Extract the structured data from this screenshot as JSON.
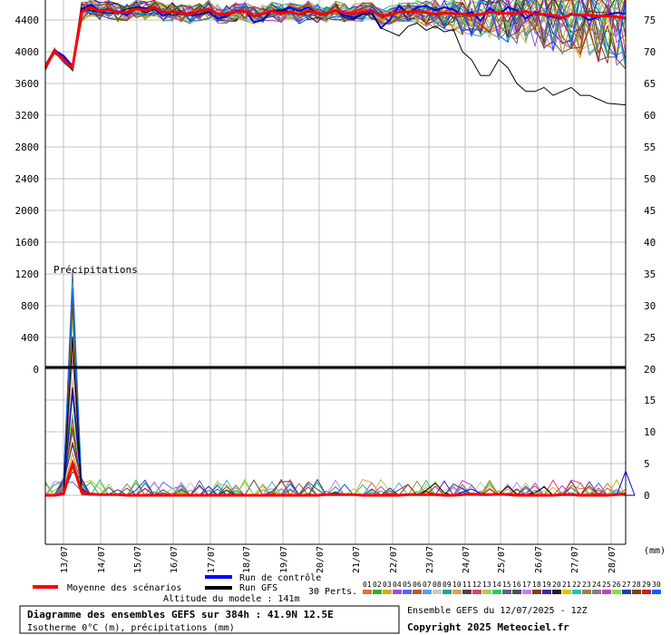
{
  "chart_data": {
    "type": "line",
    "title": "Diagramme des ensembles GEFS sur 384h : 41.9N 12.5E",
    "subtitle": "Isotherme 0°C (m), précipitations (mm)",
    "model_altitude": "Altitude du modele : 141m",
    "run_info": "Ensemble GEFS du 12/07/2025 - 12Z",
    "copyright": "Copyright 2025 Meteociel.fr",
    "precip_label": "Précipitations",
    "precip_unit": "(mm)",
    "x_tick_labels": [
      "13/07",
      "14/07",
      "15/07",
      "16/07",
      "17/07",
      "18/07",
      "19/07",
      "20/07",
      "21/07",
      "22/07",
      "23/07",
      "24/07",
      "25/07",
      "26/07",
      "27/07",
      "28/07"
    ],
    "y_left_ticks": [
      "4400",
      "4000",
      "3600",
      "3200",
      "2800",
      "2400",
      "2000",
      "1600",
      "1200",
      "800",
      "400",
      "0"
    ],
    "y_right_upper_ticks": [
      "75",
      "70",
      "65",
      "60",
      "55",
      "50",
      "45",
      "40",
      "35",
      "30",
      "25",
      "20"
    ],
    "y_right_lower_ticks": [
      "15",
      "10",
      "5",
      "0"
    ],
    "grid": true,
    "legend": {
      "mean": "Moyenne des scénarios",
      "control": "Run de contrôle",
      "gfs": "Run GFS",
      "perts_label": "30 Perts.",
      "pert_numbers": [
        "01",
        "02",
        "03",
        "04",
        "05",
        "06",
        "07",
        "08",
        "09",
        "10",
        "11",
        "12",
        "13",
        "14",
        "15",
        "16",
        "17",
        "18",
        "19",
        "20",
        "21",
        "22",
        "23",
        "24",
        "25",
        "26",
        "27",
        "28",
        "29",
        "30"
      ],
      "pert_colors": [
        "#e07030",
        "#30b030",
        "#d0b000",
        "#a050d0",
        "#6060ff",
        "#b06020",
        "#50a0ff",
        "#c8c8c8",
        "#20a0a0",
        "#e0a050",
        "#504050",
        "#e04060",
        "#a0d060",
        "#20d060",
        "#606090",
        "#505050",
        "#c080ff",
        "#804020",
        "#5020a0",
        "#202020",
        "#e0c000",
        "#20c0c0",
        "#a08040",
        "#808080",
        "#c040c0",
        "#80e040",
        "#2040a0",
        "#804000",
        "#c02020",
        "#0060ff"
      ],
      "mean_color": "#ff0000",
      "control_color": "#0000ff",
      "gfs_color": "#000000"
    },
    "series_mean_freezing": [
      3800,
      4010,
      3900,
      3800,
      4500,
      4560,
      4510,
      4530,
      4490,
      4500,
      4540,
      4520,
      4560,
      4490,
      4500,
      4490,
      4470,
      4510,
      4530,
      4480,
      4470,
      4500,
      4510,
      4450,
      4480,
      4510,
      4480,
      4500,
      4470,
      4520,
      4480,
      4480,
      4520,
      4490,
      4480,
      4500,
      4520,
      4450,
      4460,
      4500,
      4500,
      4510,
      4490,
      4470,
      4490,
      4480,
      4470,
      4460,
      4470,
      4500,
      4490,
      4480,
      4480,
      4510,
      4470,
      4470,
      4460,
      4430,
      4470,
      4460,
      4460,
      4450,
      4450,
      4440,
      4420
    ],
    "series_mean_precip": [
      0,
      0,
      0.2,
      5,
      0.5,
      0.2,
      0.1,
      0.1,
      0.1,
      0,
      0,
      0,
      0,
      0,
      0,
      0,
      0,
      0,
      0,
      0,
      0,
      0,
      0,
      0,
      0,
      0,
      0,
      0,
      0,
      0,
      0,
      0.1,
      0.1,
      0.1,
      0.1,
      0,
      0,
      0,
      0,
      0,
      0.1,
      0.1,
      0.1,
      0.1,
      0,
      0,
      0.1,
      0.2,
      0.1,
      0.1,
      0.2,
      0.1,
      0,
      0,
      0,
      0,
      0,
      0.1,
      0.1,
      0,
      0,
      0,
      0,
      0.1,
      0.2
    ],
    "series_control_freezing": [
      3800,
      4020,
      3950,
      3820,
      4540,
      4590,
      4520,
      4540,
      4500,
      4460,
      4560,
      4550,
      4540,
      4450,
      4500,
      4480,
      4460,
      4470,
      4500,
      4420,
      4450,
      4510,
      4520,
      4370,
      4400,
      4520,
      4520,
      4560,
      4510,
      4560,
      4470,
      4480,
      4520,
      4460,
      4430,
      4480,
      4500,
      4300,
      4400,
      4580,
      4480,
      4560,
      4580,
      4520,
      4560,
      4530,
      4460,
      4500,
      4390,
      4550,
      4470,
      4560,
      4520,
      4420,
      4500,
      4460,
      4440,
      4420,
      4480,
      4460,
      4400,
      4440,
      4470,
      4490,
      4480
    ],
    "series_control_precip": [
      0,
      0,
      0.5,
      16,
      1,
      0.2,
      0,
      0,
      0,
      0,
      0,
      0,
      0,
      0,
      0,
      0,
      0,
      0,
      0,
      0,
      0,
      0,
      0,
      0,
      0,
      0,
      0,
      0,
      0,
      0,
      0,
      0,
      0,
      0,
      0,
      0,
      0,
      0,
      0,
      0,
      0,
      0,
      0,
      0,
      0,
      0,
      0.5,
      1,
      0.3,
      0.2,
      0.2,
      0.3,
      0,
      0,
      0,
      0,
      0,
      0,
      0,
      0,
      0,
      0,
      0,
      0,
      3.8,
      0
    ],
    "series_gfs_freezing": [
      3780,
      4000,
      3920,
      3760,
      4550,
      4520,
      4500,
      4480,
      4500,
      4540,
      4560,
      4490,
      4530,
      4500,
      4460,
      4480,
      4490,
      4470,
      4510,
      4470,
      4480,
      4500,
      4520,
      4460,
      4470,
      4500,
      4520,
      4510,
      4460,
      4500,
      4480,
      4470,
      4520,
      4430,
      4410,
      4470,
      4470,
      4300,
      4250,
      4200,
      4320,
      4360,
      4270,
      4320,
      4250,
      4280,
      4000,
      3900,
      3700,
      3700,
      3900,
      3800,
      3600,
      3500,
      3500,
      3550,
      3450,
      3500,
      3550,
      3450,
      3450,
      3400,
      3350,
      3340,
      3330
    ],
    "series_gfs_precip": [
      0,
      0,
      0.3,
      25,
      0.6,
      0.1,
      0,
      0,
      0,
      0,
      0,
      0,
      0,
      0,
      0,
      0,
      0,
      0,
      0,
      0,
      0,
      0,
      0,
      0,
      0,
      0,
      0,
      0,
      0,
      0,
      0,
      0,
      0,
      0,
      0,
      0,
      0,
      0,
      0,
      0,
      0,
      0,
      0.8,
      1.9,
      0.4,
      0,
      0,
      0,
      0,
      0.1,
      0.2,
      1.4,
      0.2,
      0.1,
      0.4,
      1.3,
      0,
      0,
      0,
      0,
      0,
      0,
      0,
      0,
      0,
      0
    ]
  }
}
